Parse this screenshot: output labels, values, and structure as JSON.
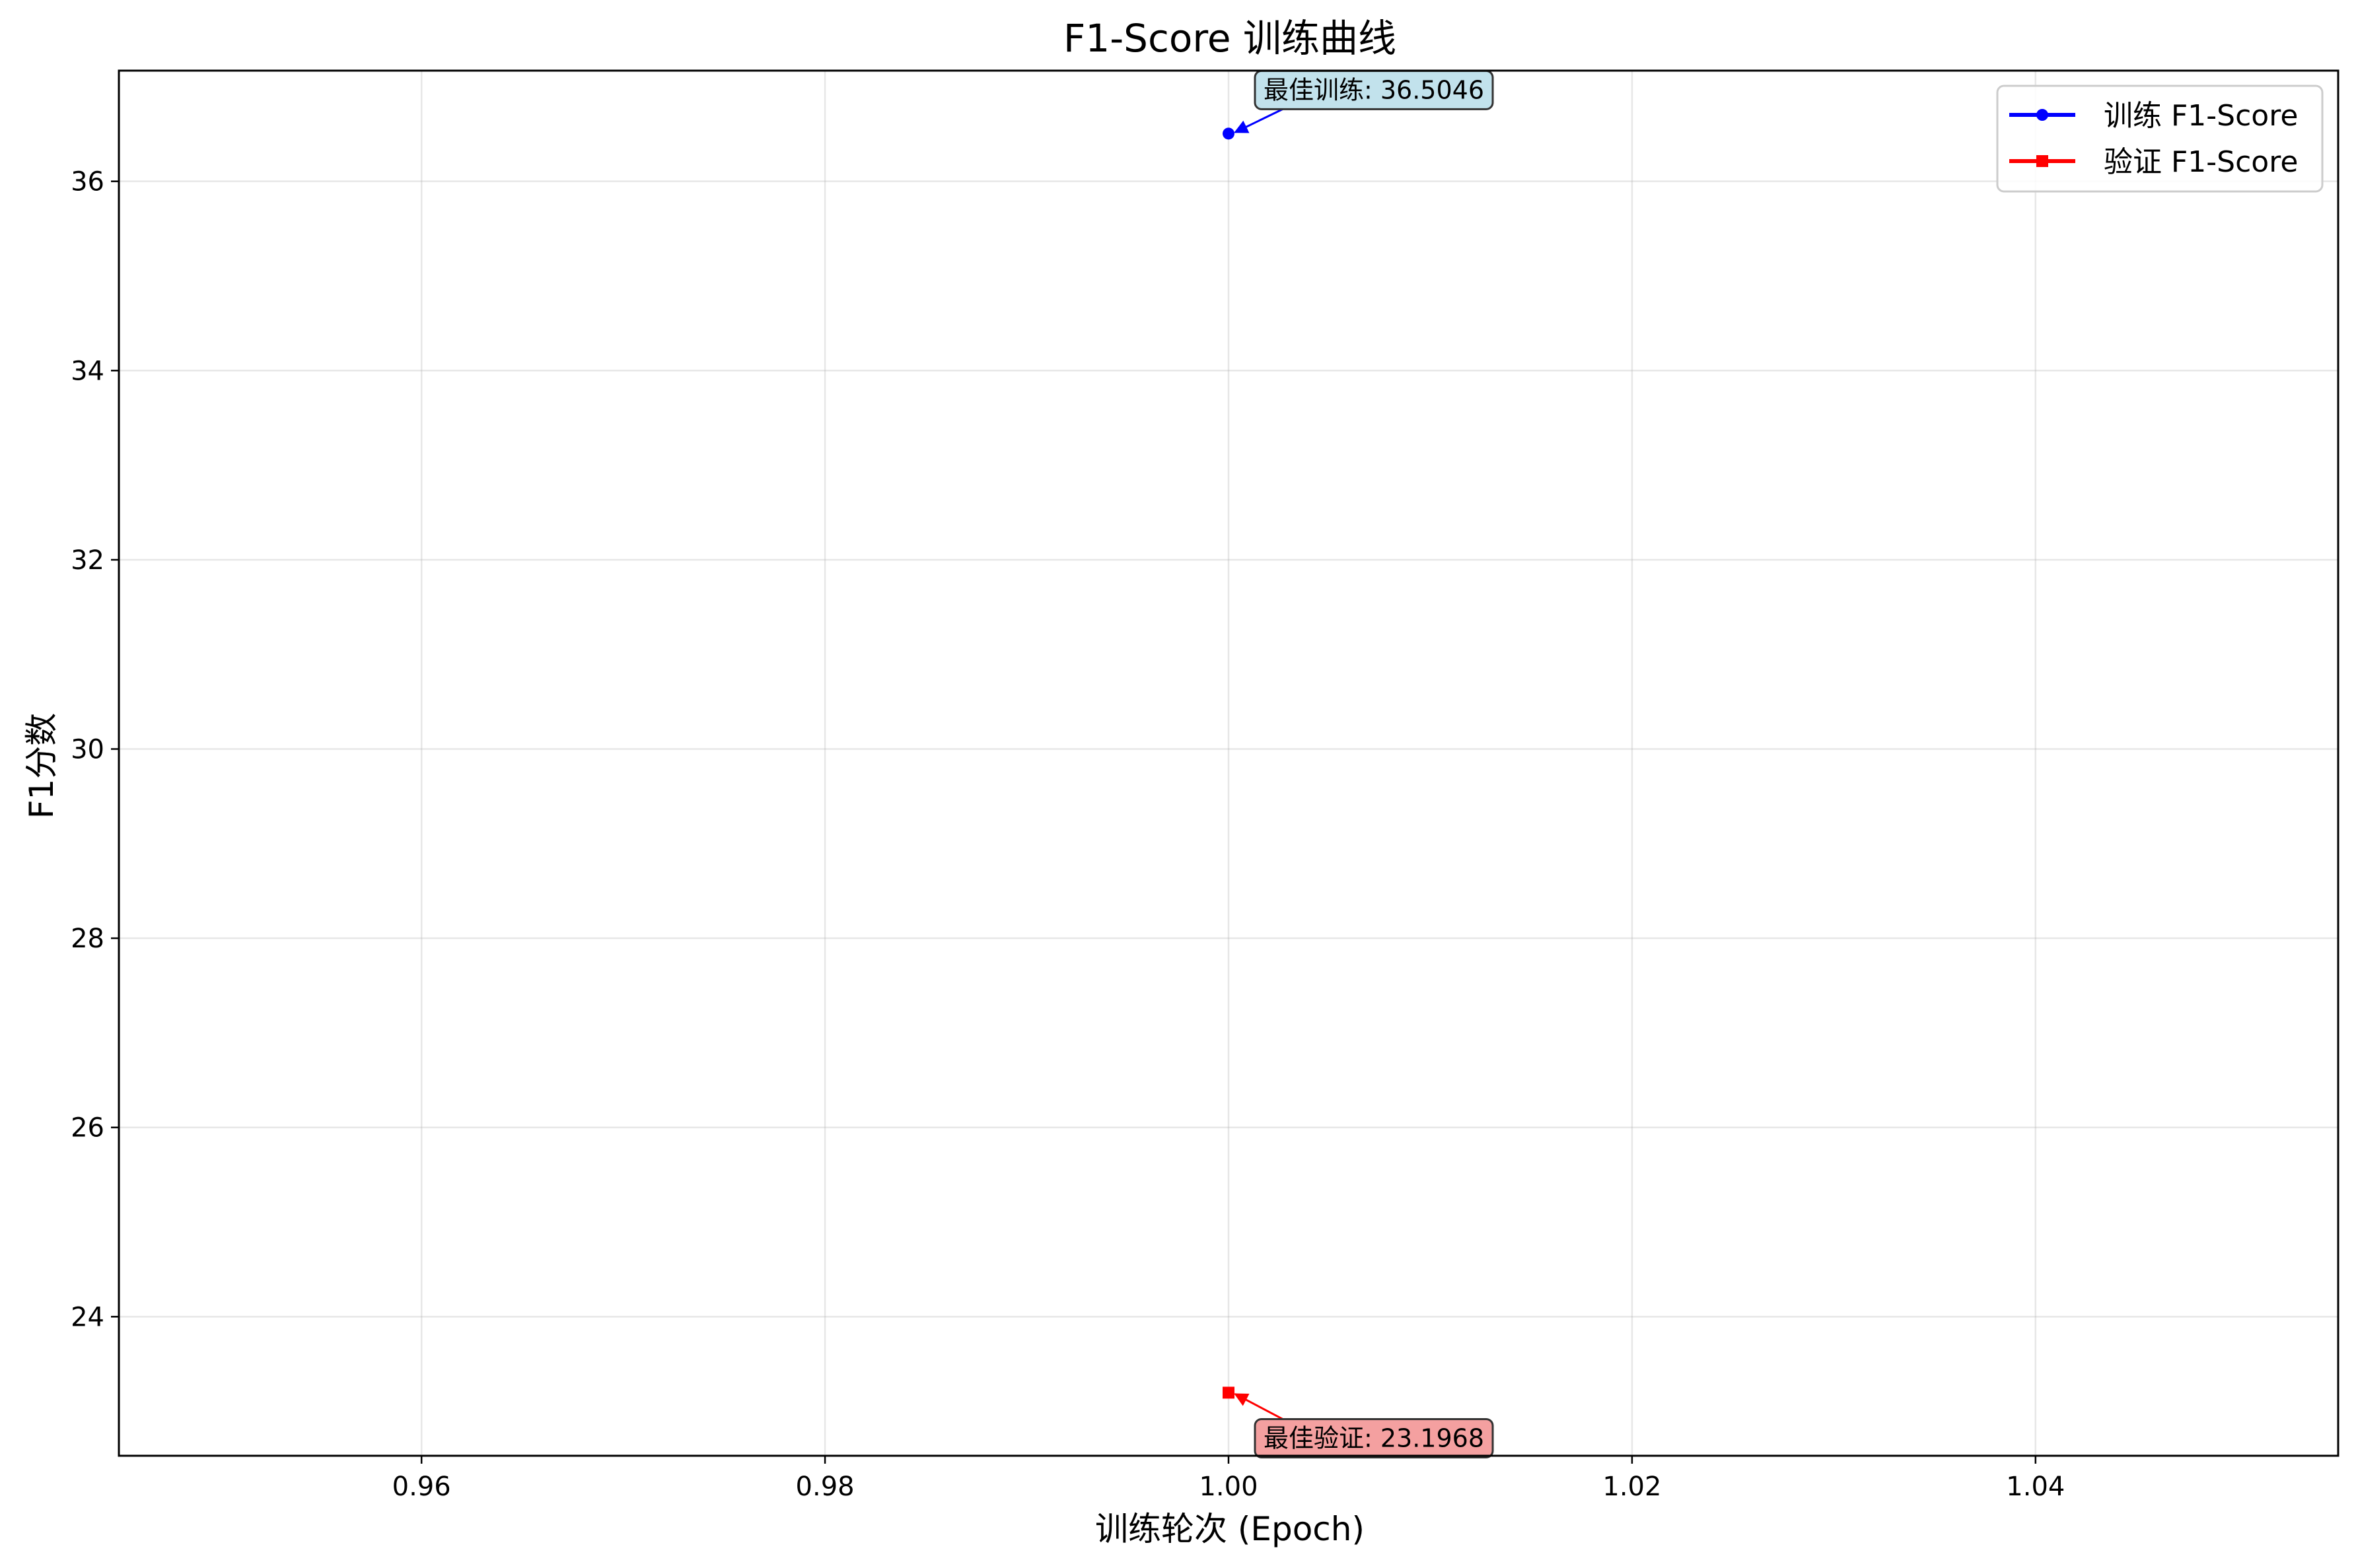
{
  "chart_data": {
    "type": "line",
    "title": "F1-Score 训练曲线",
    "xlabel": "训练轮次 (Epoch)",
    "ylabel": "F1分数",
    "xlim": [
      0.945,
      1.055
    ],
    "ylim": [
      22.53,
      37.17
    ],
    "x_ticks": [
      0.96,
      0.98,
      1.0,
      1.02,
      1.04
    ],
    "x_tick_labels": [
      "0.96",
      "0.98",
      "1.00",
      "1.02",
      "1.04"
    ],
    "y_ticks": [
      24,
      26,
      28,
      30,
      32,
      34,
      36
    ],
    "y_tick_labels": [
      "24",
      "26",
      "28",
      "30",
      "32",
      "34",
      "36"
    ],
    "grid": true,
    "legend_position": "top-right",
    "series": [
      {
        "name": "训练 F1-Score",
        "color": "#0000ff",
        "marker": "circle",
        "x": [
          1.0
        ],
        "y": [
          36.5046
        ]
      },
      {
        "name": "验证 F1-Score",
        "color": "#ff0000",
        "marker": "square",
        "x": [
          1.0
        ],
        "y": [
          23.1968
        ]
      }
    ],
    "annotations": [
      {
        "text": "最佳训练: 36.5046",
        "x": 1.0,
        "y": 36.5046,
        "series": 0,
        "fill": "#add8e6",
        "placement": "above-right"
      },
      {
        "text": "最佳验证: 23.1968",
        "x": 1.0,
        "y": 23.1968,
        "series": 1,
        "fill": "#f08080",
        "placement": "below-right"
      }
    ]
  }
}
